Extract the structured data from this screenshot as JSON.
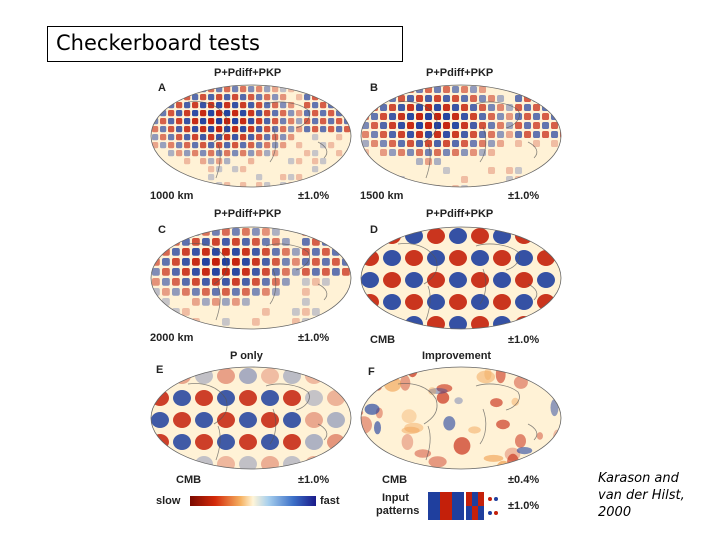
{
  "title": "Checkerboard tests",
  "panels": [
    {
      "letter": "A",
      "title": "P+Pdiff+PKP",
      "left_label": "1000 km",
      "right_label": "±1.0%",
      "pattern": "checker",
      "cell": 1
    },
    {
      "letter": "B",
      "title": "P+Pdiff+PKP",
      "left_label": "1500 km",
      "right_label": "±1.0%",
      "pattern": "checker",
      "cell": 1.5
    },
    {
      "letter": "C",
      "title": "P+Pdiff+PKP",
      "left_label": "2000 km",
      "right_label": "±1.0%",
      "pattern": "checker",
      "cell": 2
    },
    {
      "letter": "D",
      "title": "P+Pdiff+PKP",
      "left_label": "CMB",
      "right_label": "±1.0%",
      "pattern": "cmb",
      "cell": 3
    },
    {
      "letter": "E",
      "title": "P only",
      "left_label": "CMB",
      "right_label": "±1.0%",
      "pattern": "cmb-weak",
      "cell": 3
    },
    {
      "letter": "F",
      "title": "Improvement",
      "left_label": "CMB",
      "right_label": "±0.4%",
      "pattern": "improvement",
      "cell": 3
    }
  ],
  "legend": {
    "slow": "slow",
    "fast": "fast",
    "input_line1": "Input",
    "input_line2": "patterns",
    "input_scale": "±1.0%"
  },
  "credit": {
    "line1": "Karason and",
    "line2": "van der Hilst,",
    "line3": "2000"
  },
  "colors": {
    "slow": "#c4200a",
    "fast": "#1f3f9e",
    "ocean": "#fff2d6",
    "land_line": "#555555"
  }
}
